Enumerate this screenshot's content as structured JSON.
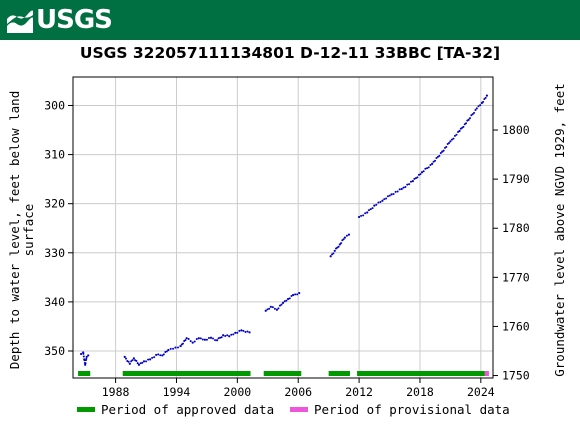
{
  "header": {
    "logo_text": "USGS",
    "logo_icon": "usgs-wave-icon",
    "banner_color": "#006f41"
  },
  "chart_data": {
    "type": "scatter",
    "title": "USGS 322057111134801 D-12-11 33BBC [TA-32]",
    "ylabel_left_line1": "Depth to water level, feet below land",
    "ylabel_left_line2": "surface",
    "ylabel_right": "Groundwater level above NGVD 1929, feet",
    "xlabel": "",
    "xlim": [
      1983.8,
      2025.2
    ],
    "ylim_left": [
      355.5,
      294.2
    ],
    "ylim_right": [
      1749.5,
      1810.8
    ],
    "left_ticks": [
      300,
      310,
      320,
      330,
      340,
      350
    ],
    "right_ticks": [
      1750,
      1760,
      1770,
      1780,
      1790,
      1800
    ],
    "x_ticks": [
      1988,
      1994,
      2000,
      2006,
      2012,
      2018,
      2024
    ],
    "x_tick_labels": [
      "1988",
      "1994",
      "2000",
      "2006",
      "2012",
      "2018",
      "2024"
    ],
    "grid": true,
    "series_color": "#0000cc",
    "segments": [
      {
        "points": [
          [
            1984.6,
            350.6
          ],
          [
            1984.8,
            350.3
          ],
          [
            1985.0,
            352.8
          ],
          [
            1985.15,
            351.2
          ],
          [
            1985.3,
            350.9
          ]
        ]
      },
      {
        "points": [
          [
            1988.9,
            351.2
          ],
          [
            1989.4,
            352.6
          ],
          [
            1989.8,
            351.5
          ],
          [
            1990.3,
            352.8
          ],
          [
            1990.8,
            352.1
          ],
          [
            1991.4,
            351.7
          ],
          [
            1992.0,
            350.8
          ],
          [
            1992.6,
            350.9
          ],
          [
            1993.2,
            349.8
          ],
          [
            1993.9,
            349.3
          ],
          [
            1994.4,
            349.0
          ],
          [
            1995.0,
            347.4
          ],
          [
            1995.6,
            348.3
          ],
          [
            1996.2,
            347.4
          ],
          [
            1996.8,
            347.7
          ],
          [
            1997.4,
            347.3
          ],
          [
            1998.0,
            347.8
          ],
          [
            1998.6,
            346.8
          ],
          [
            1999.2,
            347.0
          ],
          [
            1999.8,
            346.3
          ],
          [
            2000.4,
            345.8
          ],
          [
            2001.2,
            346.2
          ]
        ]
      },
      {
        "points": [
          [
            2002.8,
            341.8
          ],
          [
            2003.3,
            341.0
          ],
          [
            2003.9,
            341.6
          ],
          [
            2004.5,
            340.2
          ],
          [
            2005.0,
            339.4
          ],
          [
            2005.5,
            338.6
          ],
          [
            2006.1,
            338.2
          ]
        ]
      },
      {
        "points": [
          [
            2009.2,
            330.7
          ],
          [
            2009.6,
            329.6
          ],
          [
            2010.1,
            328.3
          ],
          [
            2010.6,
            326.9
          ],
          [
            2011.0,
            326.3
          ]
        ]
      },
      {
        "points": [
          [
            2012.0,
            322.7
          ],
          [
            2012.8,
            321.8
          ],
          [
            2013.5,
            320.4
          ],
          [
            2014.3,
            319.4
          ],
          [
            2015.2,
            318.1
          ],
          [
            2016.2,
            317.0
          ],
          [
            2017.3,
            315.4
          ],
          [
            2018.2,
            313.6
          ],
          [
            2019.2,
            311.9
          ],
          [
            2020.2,
            309.4
          ],
          [
            2021.0,
            307.3
          ],
          [
            2021.9,
            305.2
          ],
          [
            2022.8,
            302.9
          ],
          [
            2023.6,
            300.6
          ],
          [
            2024.1,
            299.5
          ],
          [
            2024.6,
            298.0
          ]
        ]
      }
    ],
    "approved_periods": [
      [
        1984.3,
        1985.5
      ],
      [
        1988.7,
        2001.3
      ],
      [
        2002.6,
        2006.3
      ],
      [
        2009.0,
        2011.1
      ],
      [
        2011.8,
        2024.4
      ]
    ],
    "provisional_periods": [
      [
        2024.4,
        2024.8
      ]
    ],
    "approved_color": "#009900",
    "provisional_color": "#ee55dd",
    "legend": {
      "approved_label": "Period of approved data",
      "provisional_label": "Period of provisional data",
      "placement": "bottom"
    }
  }
}
